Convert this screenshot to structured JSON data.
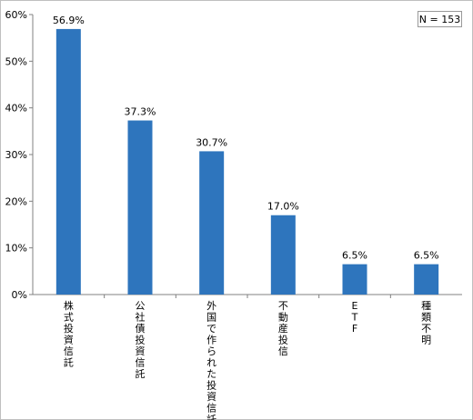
{
  "chart_data": {
    "type": "bar",
    "categories": [
      "株式投資信託",
      "公社債投資信託",
      "外国で作られた投資信託",
      "不動産投信",
      "ETF",
      "種類不明"
    ],
    "values": [
      56.9,
      37.3,
      30.7,
      17.0,
      6.5,
      6.5
    ],
    "data_labels": [
      "56.9%",
      "37.3%",
      "30.7%",
      "17.0%",
      "6.5%",
      "6.5%"
    ],
    "y_ticks": [
      0,
      10,
      20,
      30,
      40,
      50,
      60
    ],
    "y_tick_labels": [
      "0%",
      "10%",
      "20%",
      "30%",
      "40%",
      "50%",
      "60%"
    ],
    "ylim": [
      0,
      60
    ],
    "grid": false,
    "bar_color": "#2e75bd",
    "annotation": "N = 153"
  }
}
